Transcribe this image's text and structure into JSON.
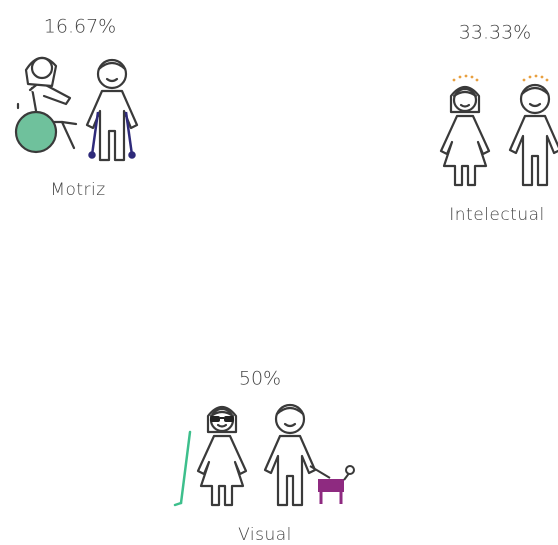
{
  "items": [
    {
      "percent": "16.67%",
      "label": "Motriz"
    },
    {
      "percent": "33.33%",
      "label": "Intelectual"
    },
    {
      "percent": "50%",
      "label": "Visual"
    }
  ]
}
